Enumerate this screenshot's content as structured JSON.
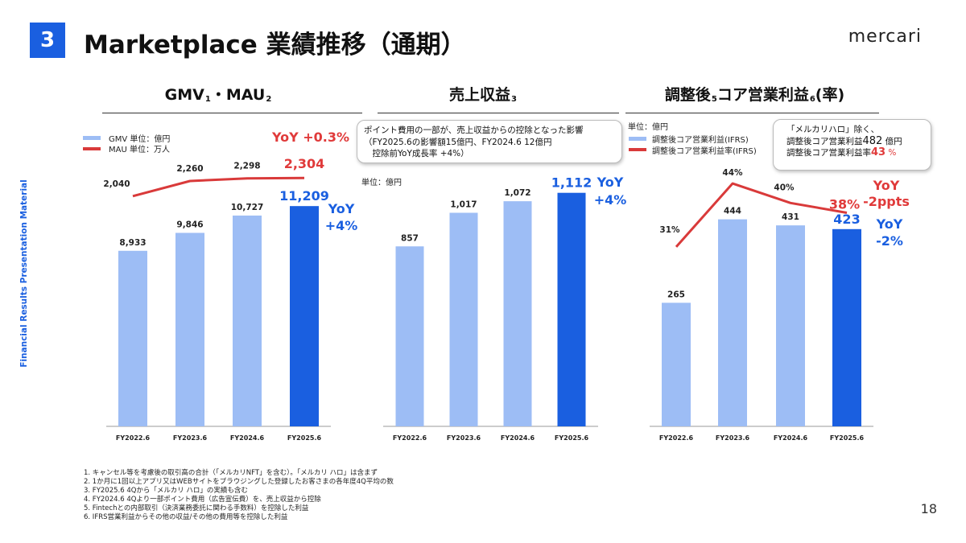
{
  "header": {
    "section_number": "3",
    "title": "Marketplace 業績推移（通期）",
    "brand": "mercari",
    "sidebar_text": "Financial Results Presentation Material",
    "page_number": "18"
  },
  "colors": {
    "accent": "#1a5fe0",
    "bar_light": "#9dbdf5",
    "bar_highlight": "#1a5fe0",
    "line_red": "#d93a3a",
    "yoy_red": "#e03a3a",
    "yoy_blue": "#1a5fe0"
  },
  "panels": {
    "gmv": {
      "title": "GMV",
      "title_sup1": "1",
      "title_sep": "・",
      "title2": "MAU",
      "title_sup2": "2",
      "legend_bar": "GMV 単位：億円",
      "legend_line": "MAU 単位：万人",
      "yoy_line": "YoY +0.3%",
      "yoy_bar_1": "YoY",
      "yoy_bar_2": "+4%"
    },
    "revenue": {
      "title": "売上収益",
      "title_sup": "3",
      "unit": "単位：億円",
      "callout": [
        "ポイント費用の一部が、売上収益からの控除となった影響",
        "（FY2025.6の影響額15億円、FY2024.6 12億円",
        "　控除前YoY成長率 +4%）"
      ],
      "yoy_bar_1": "YoY",
      "yoy_bar_2": "+4%"
    },
    "profit": {
      "title_a": "調整後",
      "title_sup1": "5",
      "title_b": "コア営業利益",
      "title_sup2": "6",
      "title_c": "(率)",
      "unit": "単位：億円",
      "legend_bar": "調整後コア営業利益(IFRS)",
      "legend_line": "調整後コア営業利益率(IFRS)",
      "callout_1": "「メルカリハロ」除く、",
      "callout_2_a": "調整後コア営業利益",
      "callout_2_b": "482",
      "callout_2_c": " 億円",
      "callout_3_a": "調整後コア営業利益率",
      "callout_3_b": "43",
      "callout_3_c": " %",
      "yoy_line_1": "YoY",
      "yoy_line_2": "-2ppts",
      "yoy_bar_1": "YoY",
      "yoy_bar_2": "-2%"
    }
  },
  "chart_data": [
    {
      "type": "bar+line",
      "title": "GMV・MAU",
      "categories": [
        "FY2022.6",
        "FY2023.6",
        "FY2024.6",
        "FY2025.6"
      ],
      "series": [
        {
          "name": "GMV 単位：億円",
          "kind": "bar",
          "values": [
            8933,
            9846,
            10727,
            11209
          ],
          "labels": [
            "8,933",
            "9,846",
            "10,727",
            "11,209"
          ]
        },
        {
          "name": "MAU 単位：万人",
          "kind": "line",
          "values": [
            2040,
            2260,
            2298,
            2304
          ],
          "labels": [
            "2,040",
            "2,260",
            "2,298",
            "2,304"
          ]
        }
      ],
      "ylim": [
        0,
        14000
      ],
      "line_range": [
        1500,
        2400
      ]
    },
    {
      "type": "bar",
      "title": "売上収益",
      "categories": [
        "FY2022.6",
        "FY2023.6",
        "FY2024.6",
        "FY2025.6"
      ],
      "series": [
        {
          "name": "売上収益 単位：億円",
          "kind": "bar",
          "values": [
            857,
            1017,
            1072,
            1112
          ],
          "labels": [
            "857",
            "1,017",
            "1,072",
            "1,112"
          ]
        }
      ],
      "ylim": [
        0,
        1310
      ]
    },
    {
      "type": "bar+line",
      "title": "調整後コア営業利益(率)",
      "categories": [
        "FY2022.6",
        "FY2023.6",
        "FY2024.6",
        "FY2025.6"
      ],
      "series": [
        {
          "name": "調整後コア営業利益(IFRS)",
          "kind": "bar",
          "values": [
            265,
            444,
            431,
            423
          ],
          "labels": [
            "265",
            "444",
            "431",
            "423"
          ]
        },
        {
          "name": "調整後コア営業利益率(IFRS)",
          "kind": "line",
          "values": [
            31,
            44,
            40,
            38
          ],
          "labels": [
            "31%",
            "44%",
            "40%",
            "38%"
          ]
        }
      ],
      "ylim": [
        0,
        590
      ],
      "line_range": [
        30,
        45
      ]
    }
  ],
  "footnotes": [
    "1. キャンセル等を考慮後の取引高の合計（「メルカリNFT」を含む）。「メルカリ ハロ」は含まず",
    "2. 1か月に1回以上アプリ又はWEBサイトをブラウジングした登録したお客さまの各年度4Q平均の数",
    "3. FY2025.6 4Qから「メルカリ ハロ」の実績も含む",
    "4. FY2024.6 4Qより一部ポイント費用（広告宣伝費）を、売上収益から控除",
    "5. Fintechとの内部取引（決済業務委託に関わる手数料）を控除した利益",
    "6. IFRS営業利益からその他の収益/その他の費用等を控除した利益"
  ]
}
